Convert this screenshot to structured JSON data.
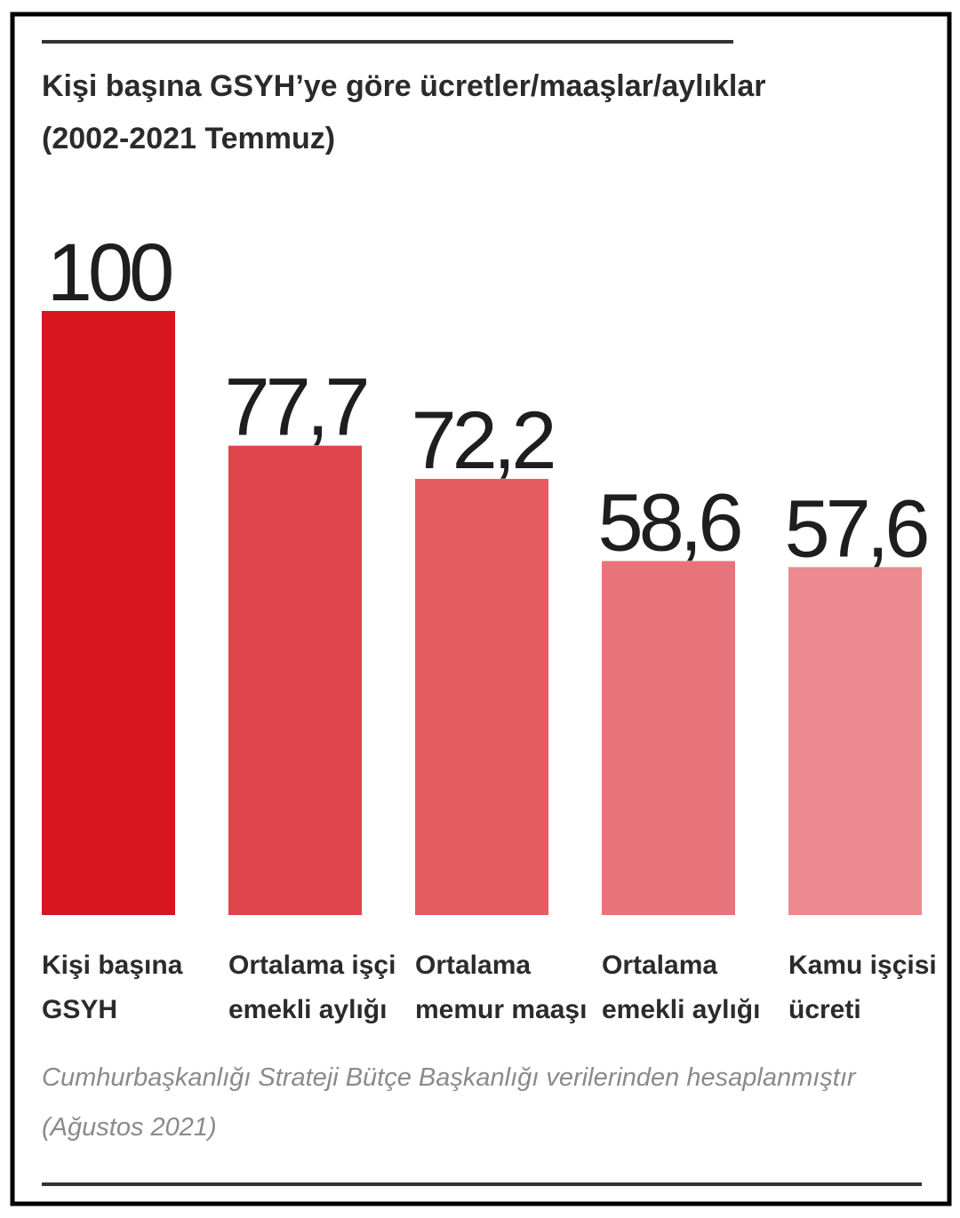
{
  "chart_data": {
    "type": "bar",
    "title": "Kişi başına GSYH’ye göre ücretler/maaşlar/aylıklar",
    "subtitle": "(2002-2021 Temmuz)",
    "categories": [
      [
        "Kişi başına",
        "GSYH"
      ],
      [
        "Ortalama işçi",
        "emekli aylığı"
      ],
      [
        "Ortalama",
        "memur maaşı"
      ],
      [
        "Ortalama",
        "emekli aylığı"
      ],
      [
        "Kamu işçisi",
        "ücreti"
      ]
    ],
    "values": [
      100,
      77.7,
      72.2,
      58.6,
      57.6
    ],
    "value_labels": [
      "100",
      "77,7",
      "72,2",
      "58,6",
      "57,6"
    ],
    "colors": [
      "#d7161f",
      "#e0444b",
      "#e45c62",
      "#e8737a",
      "#eb8a8f"
    ],
    "source": [
      "Cumhurbaşkanlığı Strateji Bütçe Başkanlığı verilerinden hesaplanmıştır",
      "(Ağustos 2021)"
    ]
  }
}
